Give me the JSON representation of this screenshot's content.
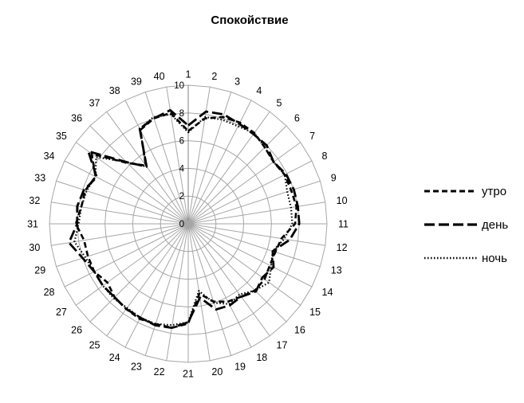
{
  "chart_data": {
    "type": "radar",
    "title": "Спокойствие",
    "categories": [
      "1",
      "2",
      "3",
      "4",
      "5",
      "6",
      "7",
      "8",
      "9",
      "10",
      "11",
      "12",
      "13",
      "14",
      "15",
      "16",
      "17",
      "18",
      "19",
      "20",
      "21",
      "22",
      "23",
      "24",
      "25",
      "26",
      "27",
      "28",
      "29",
      "30",
      "31",
      "32",
      "33",
      "34",
      "35",
      "36",
      "37",
      "38",
      "39",
      "40"
    ],
    "rlim": [
      0,
      10
    ],
    "ticks": [
      "0",
      "2",
      "4",
      "6",
      "8",
      "10"
    ],
    "grid": true,
    "legend_position": "right",
    "series": [
      {
        "name": "утро",
        "dash": "dashed",
        "values": [
          6.7,
          7.7,
          8.1,
          8.2,
          8.1,
          7.8,
          7.6,
          7.8,
          7.8,
          7.9,
          7.7,
          6.8,
          6.6,
          6.6,
          6.8,
          6.8,
          6.5,
          6.3,
          5.9,
          5.1,
          7.2,
          7.6,
          7.6,
          7.7,
          7.6,
          7.5,
          7.2,
          7.6,
          7.6,
          7.6,
          8.1,
          7.8,
          7.8,
          7.5,
          8.6,
          6.2,
          5.2,
          7.6,
          8.0,
          8.1
        ]
      },
      {
        "name": "день",
        "dash": "longdash",
        "values": [
          7.1,
          8.2,
          8.3,
          8.1,
          8.0,
          8.0,
          7.6,
          7.9,
          8.0,
          8.0,
          8.0,
          7.4,
          6.4,
          6.9,
          6.6,
          6.9,
          6.5,
          6.6,
          6.5,
          5.4,
          7.1,
          7.6,
          7.7,
          7.6,
          7.6,
          7.5,
          7.6,
          7.6,
          8.0,
          8.7,
          8.0,
          8.1,
          7.9,
          7.4,
          8.9,
          6.3,
          5.1,
          7.7,
          8.0,
          8.3
        ]
      },
      {
        "name": "ночь",
        "dash": "dotted",
        "values": [
          6.6,
          7.8,
          7.9,
          7.9,
          8.1,
          7.8,
          7.6,
          7.8,
          7.5,
          7.5,
          7.5,
          7.0,
          6.4,
          6.7,
          7.2,
          6.8,
          6.3,
          6.5,
          6.0,
          4.9,
          7.1,
          7.4,
          7.6,
          7.6,
          7.5,
          7.6,
          7.6,
          7.6,
          7.8,
          8.3,
          7.9,
          7.8,
          7.7,
          7.5,
          8.2,
          6.3,
          5.1,
          7.7,
          8.1,
          8.0
        ]
      }
    ]
  }
}
